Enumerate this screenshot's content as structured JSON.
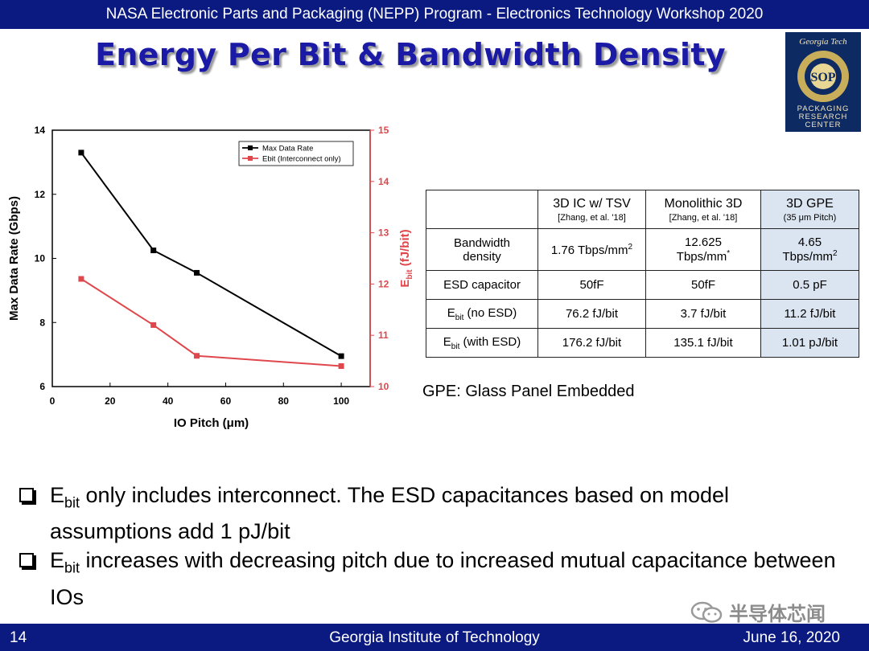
{
  "header": {
    "banner": "NASA Electronic Parts and Packaging (NEPP) Program - Electronics Technology Workshop 2020"
  },
  "title": "Energy Per Bit & Bandwidth Density",
  "logo": {
    "lines": [
      "Georgia Tech",
      "PACKAGING",
      "RESEARCH",
      "CENTER"
    ],
    "ring_text": "ALTERNATIVE TO SYSTEM-ON-CHIP",
    "color": "#0e2a63"
  },
  "chart_data": {
    "type": "line",
    "xlabel": "IO Pitch (μm)",
    "ylabel_left": "Max Data Rate (Gbps)",
    "ylabel_right": "Ebit (fJ/bit)",
    "ylabel_right_base": "E",
    "ylabel_right_sub": "bit",
    "ylabel_right_tail": " (fJ/bit)",
    "xlim": [
      0,
      110
    ],
    "ylim_left": [
      6,
      14
    ],
    "ylim_right": [
      10,
      15
    ],
    "xticks": [
      "0",
      "20",
      "40",
      "60",
      "80",
      "100"
    ],
    "yticks_left": [
      "6",
      "8",
      "10",
      "12",
      "14"
    ],
    "yticks_right": [
      "10",
      "11",
      "12",
      "13",
      "14",
      "15"
    ],
    "legend_position": "top-right",
    "series": [
      {
        "name": "Max Data Rate",
        "axis": "left",
        "color": "#000000",
        "x": [
          10,
          35,
          50,
          100
        ],
        "y": [
          13.3,
          10.25,
          9.55,
          6.95
        ]
      },
      {
        "name": "Ebit (Interconnect only)",
        "axis": "right",
        "color": "#e0474c",
        "x": [
          10,
          35,
          50,
          100
        ],
        "y": [
          12.1,
          11.2,
          10.6,
          10.4
        ]
      }
    ]
  },
  "table": {
    "headers": [
      {
        "main": "",
        "sub": ""
      },
      {
        "main": "3D IC w/ TSV",
        "sub": "[Zhang, et al. '18]"
      },
      {
        "main": "Monolithic 3D",
        "sub": "[Zhang, et al. '18]"
      },
      {
        "main": "3D GPE",
        "sub": "(35 μm Pitch)"
      }
    ],
    "bandwidth": {
      "label_line1": "Bandwidth",
      "label_line2": "density",
      "tsv": "1.76 Tbps/mm",
      "tsv_sup": "2",
      "mono_line1": "12.625",
      "mono_line2": "Tbps/mm",
      "mono_sup": "*",
      "gpe_line1": "4.65",
      "gpe_line2": "Tbps/mm",
      "gpe_sup": "2"
    },
    "esd": {
      "label": "ESD capacitor",
      "tsv": "50fF",
      "mono": "50fF",
      "gpe": "0.5 pF"
    },
    "ebit_no_esd": {
      "label_base": "E",
      "label_sub": "bit",
      "label_tail": " (no ESD)",
      "tsv": "76.2 fJ/bit",
      "mono": "3.7 fJ/bit",
      "gpe": "11.2 fJ/bit"
    },
    "ebit_with_esd": {
      "label_base": "E",
      "label_sub": "bit",
      "label_tail": " (with ESD)",
      "tsv": "176.2 fJ/bit",
      "mono": "135.1 fJ/bit",
      "gpe": "1.01 pJ/bit"
    },
    "gpe_color": "#dbe5f1"
  },
  "gpe_note": "GPE: Glass Panel Embedded",
  "bullets": [
    {
      "base": "E",
      "sub": "bit",
      "text": " only includes interconnect. The ESD capacitances based on model assumptions add 1 pJ/bit"
    },
    {
      "base": "E",
      "sub": "bit",
      "text": " increases with decreasing pitch due to increased mutual capacitance between IOs"
    }
  ],
  "watermark": "半导体芯闻",
  "footer": {
    "page": "14",
    "org": "Georgia Institute of Technology",
    "date": "June 16, 2020"
  },
  "colors": {
    "banner": "#0b1a80",
    "title": "#1a1aa6",
    "ebit_axis": "#e0474c"
  }
}
